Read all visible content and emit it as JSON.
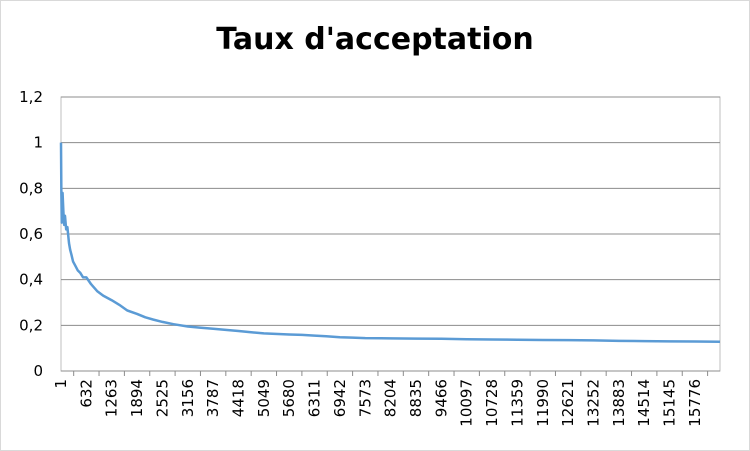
{
  "chart_data": {
    "type": "line",
    "title": "Taux d'acceptation",
    "xlabel": "",
    "ylabel": "",
    "ylim": [
      0,
      1.2
    ],
    "ytick_labels": [
      "0",
      "0,2",
      "0,4",
      "0,6",
      "0,8",
      "1",
      "1,2"
    ],
    "ytick_values": [
      0,
      0.2,
      0.4,
      0.6,
      0.8,
      1.0,
      1.2
    ],
    "xlim": [
      1,
      16400
    ],
    "xtick_labels": [
      "1",
      "632",
      "1263",
      "1894",
      "2525",
      "3156",
      "3787",
      "4418",
      "5049",
      "5680",
      "6311",
      "6942",
      "7573",
      "8204",
      "8835",
      "9466",
      "10097",
      "10728",
      "11359",
      "11990",
      "12621",
      "13252",
      "13883",
      "14514",
      "15145",
      "15776"
    ],
    "grid": true,
    "legend": "none",
    "series_color": "#5b9bd5",
    "series": [
      {
        "x": [
          1,
          10,
          20,
          40,
          60,
          80,
          100,
          130,
          160,
          200,
          230,
          260,
          300,
          360,
          420,
          480,
          550,
          632,
          750,
          900,
          1050,
          1263,
          1450,
          1650,
          1894,
          2100,
          2300,
          2525,
          2800,
          3156,
          3450,
          3787,
          4100,
          4418,
          4700,
          5049,
          5400,
          5680,
          6000,
          6311,
          6600,
          6942,
          7250,
          7573,
          8204,
          8835,
          9466,
          10097,
          10728,
          11359,
          11990,
          12621,
          13252,
          13883,
          14514,
          15145,
          15776,
          16400
        ],
        "values": [
          1.0,
          0.78,
          0.65,
          0.78,
          0.7,
          0.64,
          0.68,
          0.62,
          0.63,
          0.56,
          0.53,
          0.51,
          0.48,
          0.46,
          0.44,
          0.43,
          0.41,
          0.41,
          0.38,
          0.35,
          0.33,
          0.31,
          0.29,
          0.265,
          0.25,
          0.235,
          0.225,
          0.215,
          0.205,
          0.195,
          0.19,
          0.185,
          0.18,
          0.175,
          0.17,
          0.165,
          0.162,
          0.16,
          0.158,
          0.155,
          0.152,
          0.148,
          0.146,
          0.144,
          0.143,
          0.142,
          0.141,
          0.139,
          0.138,
          0.137,
          0.136,
          0.135,
          0.134,
          0.132,
          0.131,
          0.13,
          0.129,
          0.128
        ]
      }
    ]
  }
}
